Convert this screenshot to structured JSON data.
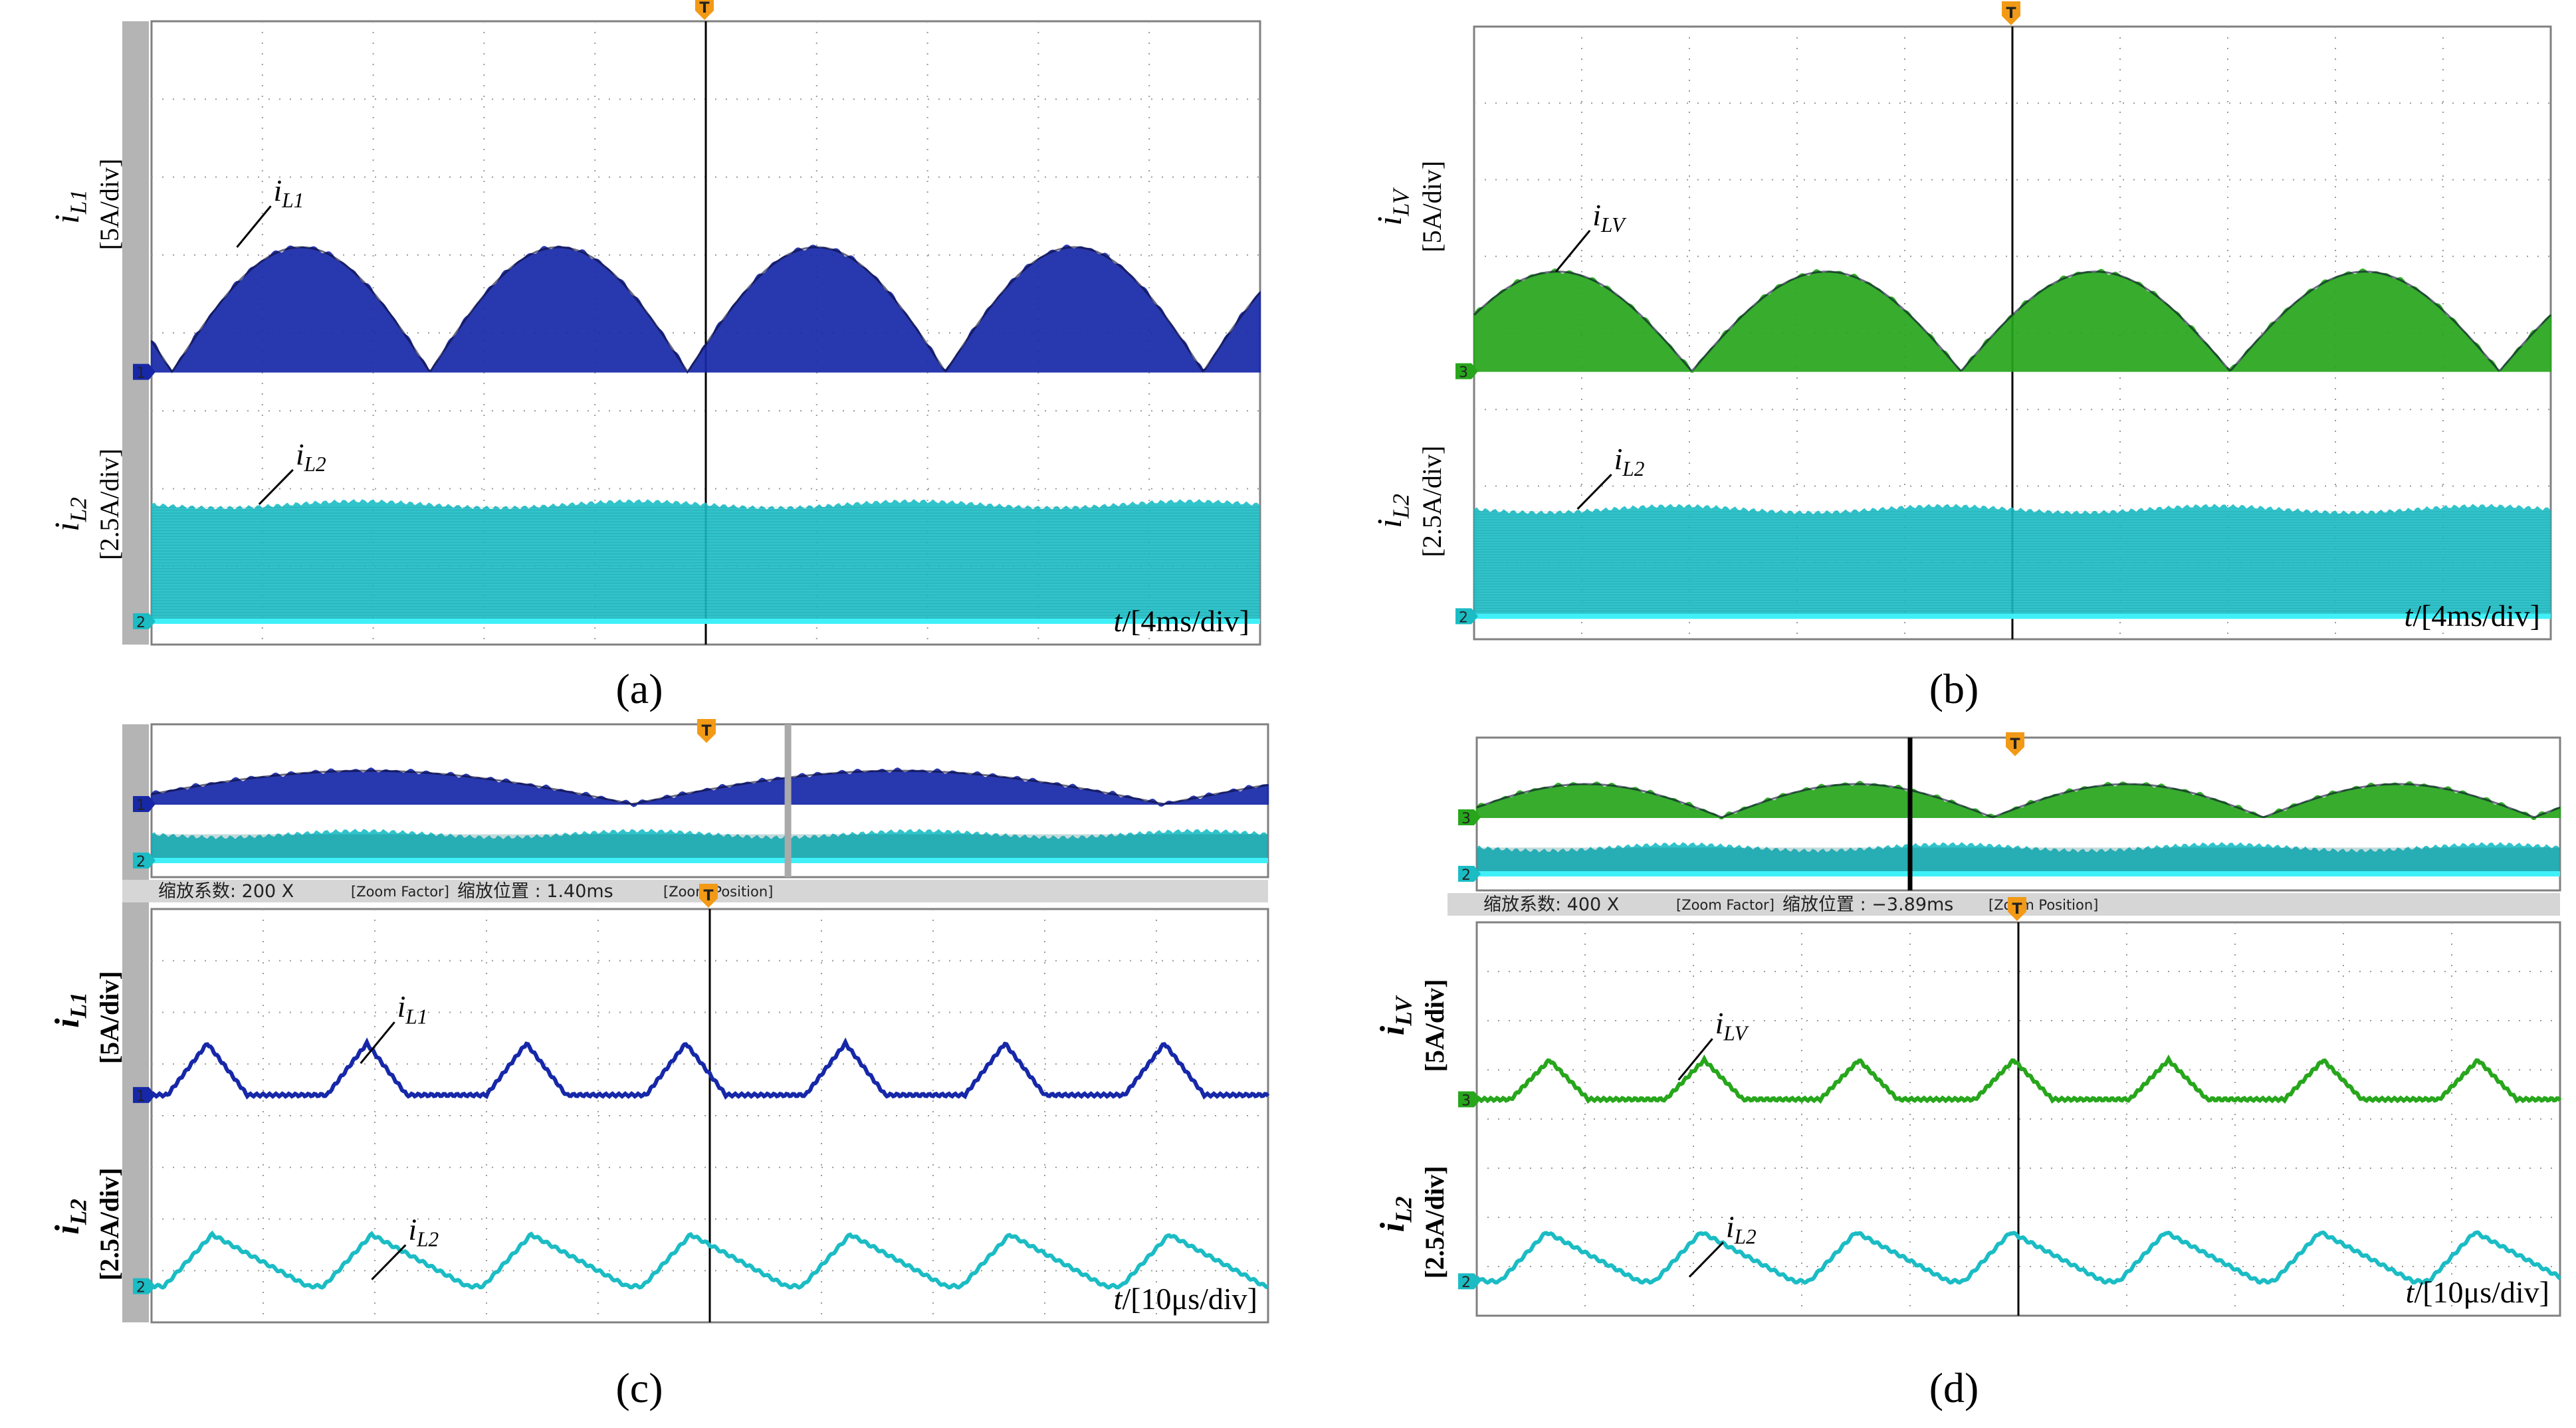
{
  "figure": {
    "panels": [
      {
        "id": "a",
        "panel_label": "(a)",
        "type": "oscilloscope",
        "color_top": "#1628a8",
        "color_bottom": "#1bbcc4",
        "top": {
          "y_label": "i",
          "y_sub": "L1",
          "y_scale": "[5A/div]",
          "trace_label": "i",
          "trace_sub": "L1",
          "channel": "1",
          "waveform": "rectified-sine envelope",
          "peak_div": 1.6,
          "humps_per_screen": 4.3
        },
        "bottom": {
          "y_label": "i",
          "y_sub": "L2",
          "y_scale": "[2.5A/div]",
          "trace_label": "i",
          "trace_sub": "L2",
          "channel": "2",
          "waveform": "dense ripple band",
          "band_div": 1.5
        },
        "x_scale_prefix": "t/",
        "x_scale": "[4ms/div]",
        "trigger_marker": "T"
      },
      {
        "id": "b",
        "panel_label": "(b)",
        "type": "oscilloscope",
        "color_top": "#27a61c",
        "color_bottom": "#1bbcc4",
        "top": {
          "y_label": "i",
          "y_sub": "LV",
          "y_scale": "[5A/div]",
          "trace_label": "i",
          "trace_sub": "LV",
          "channel": "3",
          "waveform": "rectified-sine envelope",
          "peak_div": 1.3,
          "humps_per_screen": 4.0
        },
        "bottom": {
          "y_label": "i",
          "y_sub": "L2",
          "y_scale": "[2.5A/div]",
          "trace_label": "i",
          "trace_sub": "L2",
          "channel": "2",
          "waveform": "dense ripple band",
          "band_div": 1.4
        },
        "x_scale_prefix": "t/",
        "x_scale": "[4ms/div]",
        "trigger_marker": "T"
      },
      {
        "id": "c",
        "panel_label": "(c)",
        "type": "oscilloscope-zoom",
        "color_top": "#1628a8",
        "color_bottom": "#1bbcc4",
        "zoom_text": "缩放系数: 200 X",
        "zoom_factor_tag": "[Zoom Factor]",
        "zoom_pos_text": "缩放位置 :  1.40ms",
        "zoom_pos_tag": "[Zoom Position]",
        "top": {
          "y_label": "i",
          "y_sub": "L1",
          "y_scale": "[5A/div]",
          "trace_label": "i",
          "trace_sub": "L1",
          "channel": "1",
          "waveform": "triangular DCM",
          "peak_div": 1.0,
          "pulses_per_screen": 7
        },
        "bottom": {
          "y_label": "i",
          "y_sub": "L2",
          "y_scale": "[2.5A/div]",
          "trace_label": "i",
          "trace_sub": "L2",
          "channel": "2",
          "waveform": "sawtooth ripple",
          "peak_div": 1.0,
          "min_div": 0.0
        },
        "x_scale_prefix": "t/",
        "x_scale": "[10μs/div]",
        "trigger_marker": "T"
      },
      {
        "id": "d",
        "panel_label": "(d)",
        "type": "oscilloscope-zoom",
        "color_top": "#27a61c",
        "color_bottom": "#1bbcc4",
        "zoom_text": "缩放系数: 400 X",
        "zoom_factor_tag": "[Zoom Factor]",
        "zoom_pos_text": "缩放位置 :  −3.89ms",
        "zoom_pos_tag": "[Zoom Position]",
        "top": {
          "y_label": "i",
          "y_sub": "LV",
          "y_scale": "[5A/div]",
          "trace_label": "i",
          "trace_sub": "LV",
          "channel": "3",
          "waveform": "triangular DCM",
          "peak_div": 0.8,
          "pulses_per_screen": 7
        },
        "bottom": {
          "y_label": "i",
          "y_sub": "L2",
          "y_scale": "[2.5A/div]",
          "trace_label": "i",
          "trace_sub": "L2",
          "channel": "2",
          "waveform": "sawtooth ripple",
          "peak_div": 1.0,
          "min_div": 0.0
        },
        "x_scale_prefix": "t/",
        "x_scale": "[10μs/div]",
        "trigger_marker": "T"
      }
    ]
  },
  "chart_data": [
    {
      "type": "line",
      "panel": "(a)",
      "title": "",
      "series": [
        {
          "name": "iL1",
          "unit": "A",
          "scale_per_div": 5,
          "description": "rectified sine, peak ~8 A (~1.6 div)"
        },
        {
          "name": "iL2",
          "unit": "A",
          "scale_per_div": 2.5,
          "description": "high-frequency ripple band ~0–3.75 A"
        }
      ],
      "xlabel": "t/[4ms/div]",
      "ylabel": "iL1 [5A/div]; iL2 [2.5A/div]",
      "x_divisions": 10,
      "y_divisions": 8
    },
    {
      "type": "line",
      "panel": "(b)",
      "title": "",
      "series": [
        {
          "name": "iLV",
          "unit": "A",
          "scale_per_div": 5,
          "description": "rectified sine, peak ~6.5 A (~1.3 div)"
        },
        {
          "name": "iL2",
          "unit": "A",
          "scale_per_div": 2.5,
          "description": "high-frequency ripple band ~0–3.5 A"
        }
      ],
      "xlabel": "t/[4ms/div]",
      "ylabel": "iLV [5A/div]; iL2 [2.5A/div]",
      "x_divisions": 10,
      "y_divisions": 8
    },
    {
      "type": "line",
      "panel": "(c)",
      "title": "",
      "series": [
        {
          "name": "iL1",
          "unit": "A",
          "scale_per_div": 5,
          "description": "triangular pulses, peak ~5 A, 7 per screen"
        },
        {
          "name": "iL2",
          "unit": "A",
          "scale_per_div": 2.5,
          "description": "sawtooth, ~0 to ~2.5 A"
        }
      ],
      "xlabel": "t/[10μs/div]",
      "ylabel": "iL1 [5A/div]; iL2 [2.5A/div]",
      "x_divisions": 10,
      "y_divisions": 8
    },
    {
      "type": "line",
      "panel": "(d)",
      "title": "",
      "series": [
        {
          "name": "iLV",
          "unit": "A",
          "scale_per_div": 5,
          "description": "triangular pulses, peak ~4 A, 7 per screen"
        },
        {
          "name": "iL2",
          "unit": "A",
          "scale_per_div": 2.5,
          "description": "sawtooth, ~0 to ~2.5 A"
        }
      ],
      "xlabel": "t/[10μs/div]",
      "ylabel": "iLV [5A/div]; iL2 [2.5A/div]",
      "x_divisions": 10,
      "y_divisions": 8
    }
  ]
}
